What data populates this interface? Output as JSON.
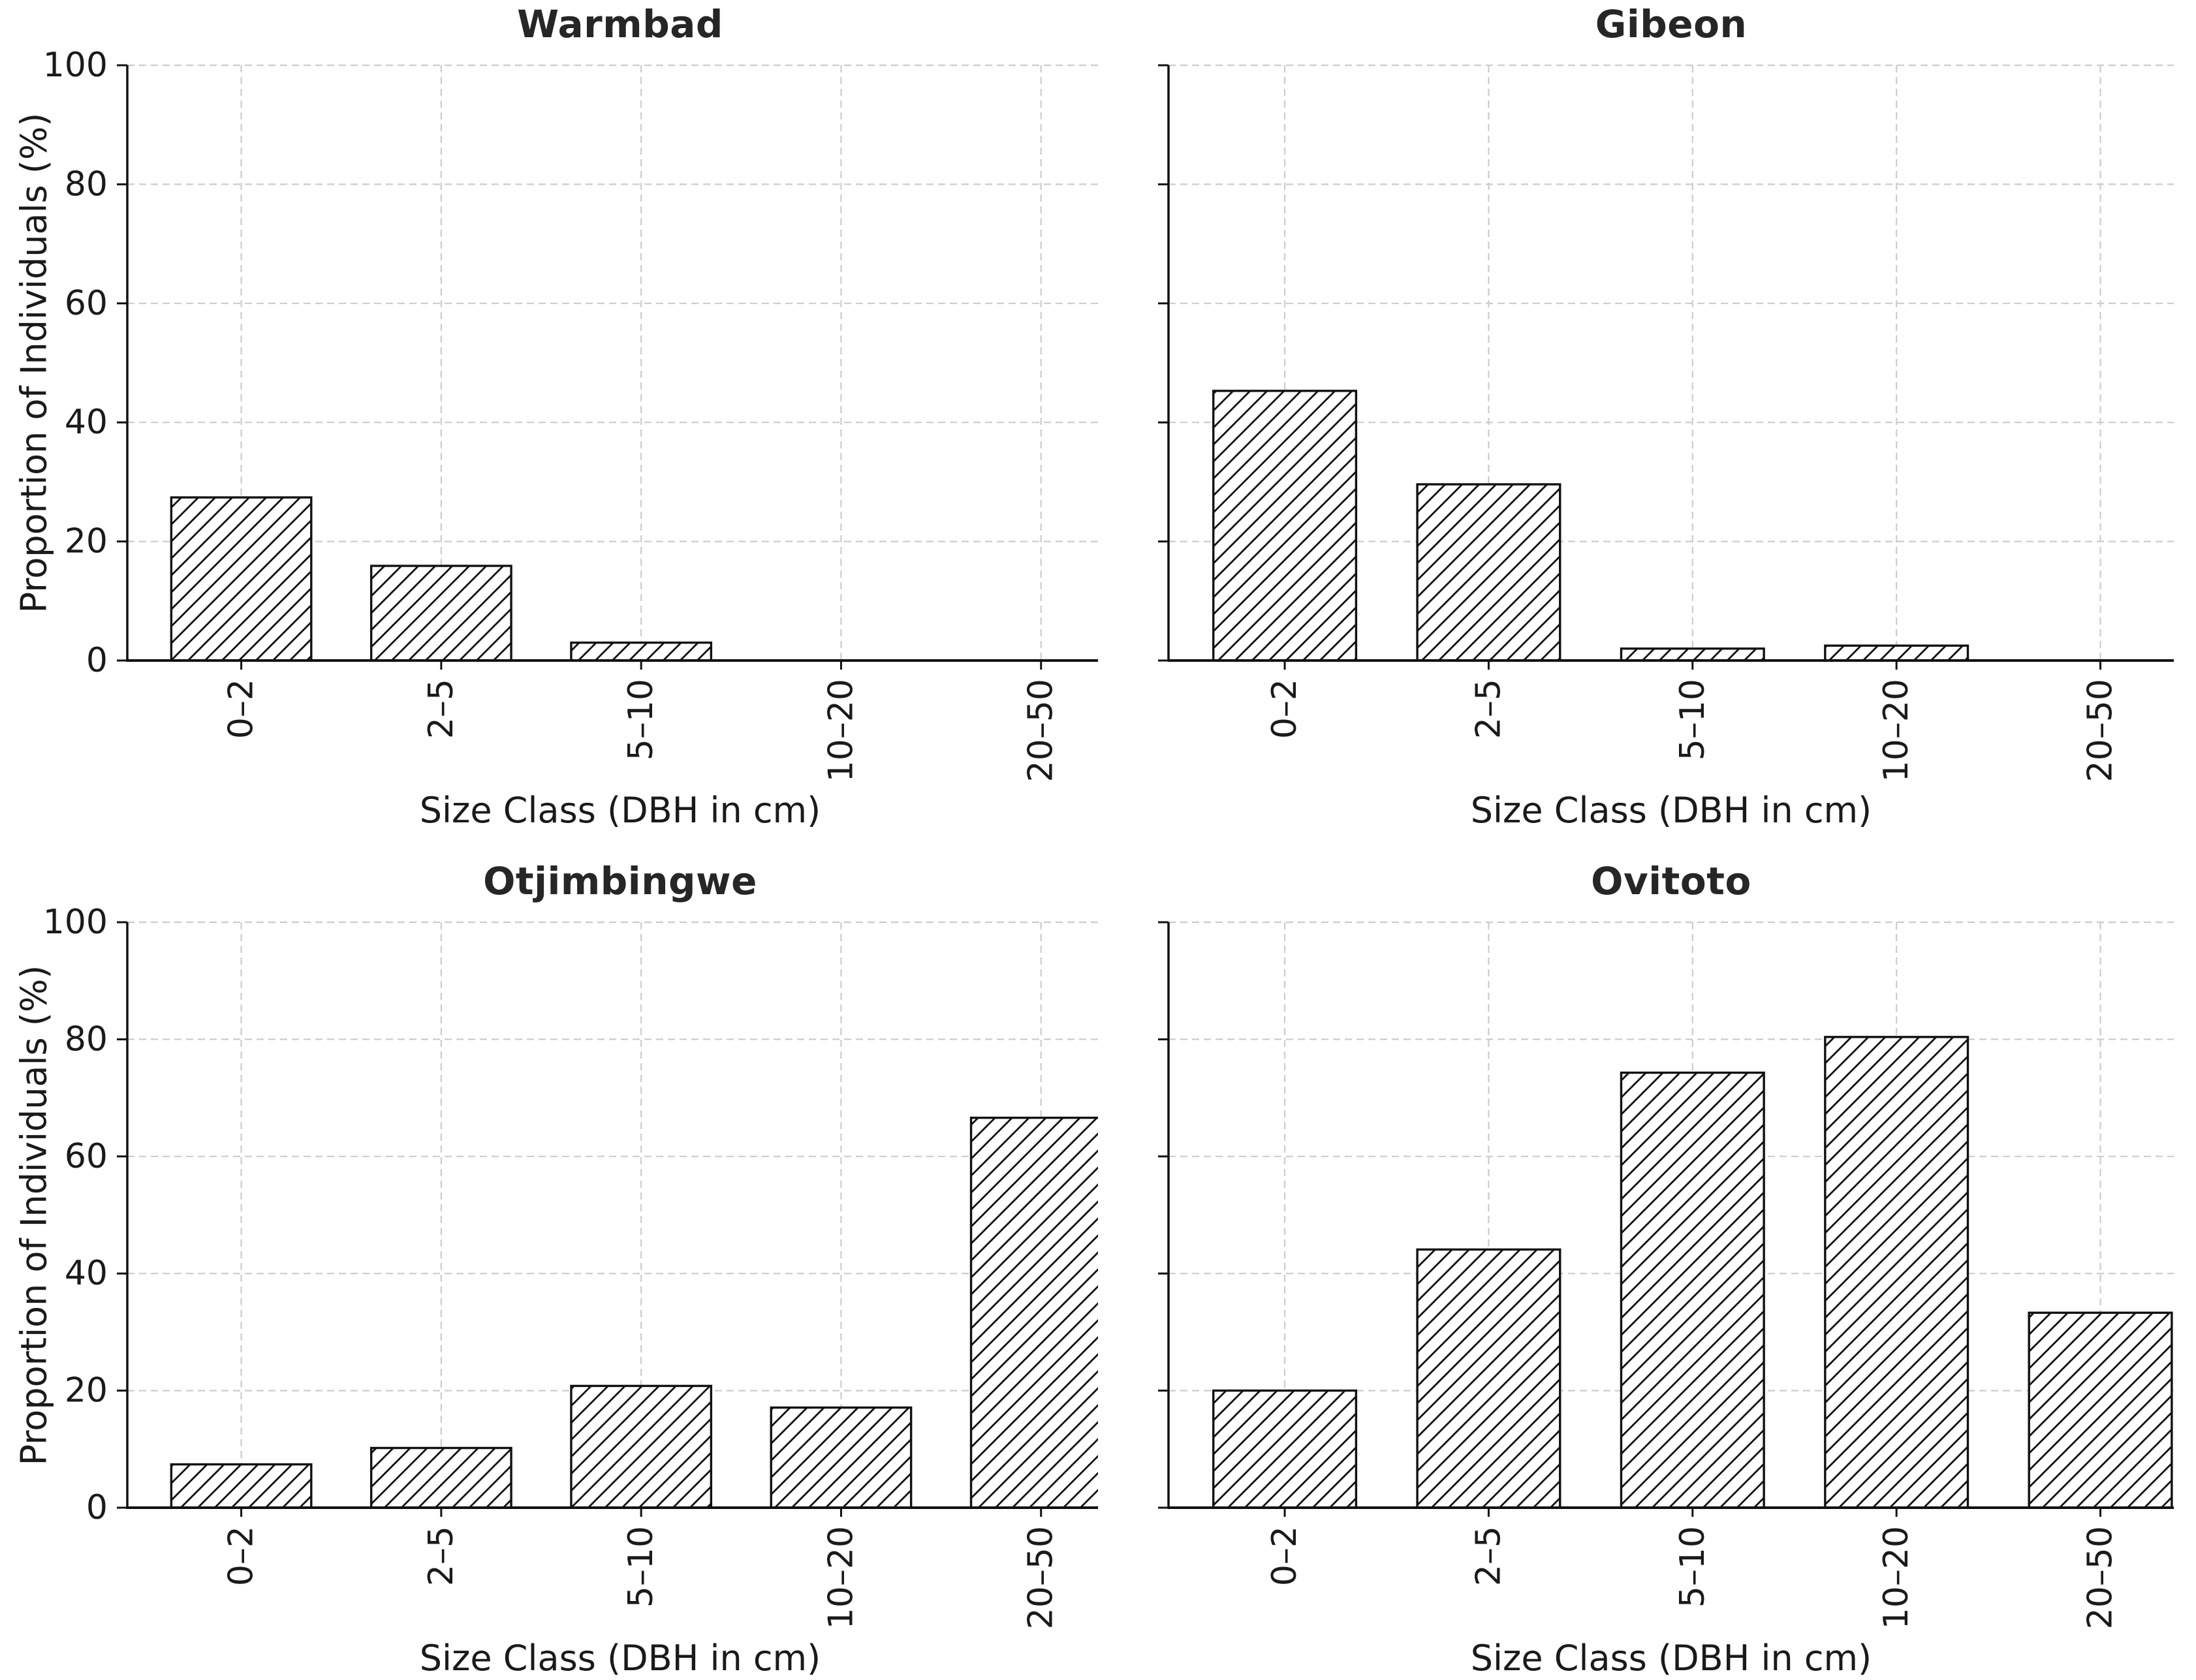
{
  "figure": {
    "background": "#ffffff",
    "text_color": "#1a1a1a",
    "grid_color": "#cccccc",
    "axis_color": "#111111",
    "bar_fill": "#ffffff",
    "bar_edge": "#111111",
    "hatch_style": "/"
  },
  "chart_data": [
    {
      "type": "bar",
      "title": "Warmbad",
      "categories": [
        "0–2",
        "2–5",
        "5–10",
        "10–20",
        "20–50"
      ],
      "values": [
        27.4,
        15.9,
        3.0,
        0,
        0
      ],
      "xlabel": "Size Class (DBH in cm)",
      "ylabel": "Proportion of Individuals (%)",
      "ylim": [
        0,
        100
      ],
      "yticks": [
        0,
        20,
        40,
        60,
        80,
        100
      ],
      "grid": "dashed",
      "legend": "none"
    },
    {
      "type": "bar",
      "title": "Gibeon",
      "categories": [
        "0–2",
        "2–5",
        "5–10",
        "10–20",
        "20–50"
      ],
      "values": [
        45.3,
        29.6,
        2.0,
        2.5,
        0
      ],
      "xlabel": "Size Class (DBH in cm)",
      "ylabel": "Proportion of Individuals (%)",
      "ylim": [
        0,
        100
      ],
      "yticks": [
        0,
        20,
        40,
        60,
        80,
        100
      ],
      "grid": "dashed",
      "legend": "none"
    },
    {
      "type": "bar",
      "title": "Otjimbingwe",
      "categories": [
        "0–2",
        "2–5",
        "5–10",
        "10–20",
        "20–50"
      ],
      "values": [
        7.4,
        10.2,
        20.8,
        17.1,
        66.6
      ],
      "xlabel": "Size Class (DBH in cm)",
      "ylabel": "Proportion of Individuals (%)",
      "ylim": [
        0,
        100
      ],
      "yticks": [
        0,
        20,
        40,
        60,
        80,
        100
      ],
      "grid": "dashed",
      "legend": "none"
    },
    {
      "type": "bar",
      "title": "Ovitoto",
      "categories": [
        "0–2",
        "2–5",
        "5–10",
        "10–20",
        "20–50"
      ],
      "values": [
        20.0,
        44.1,
        74.3,
        80.4,
        33.3
      ],
      "xlabel": "Size Class (DBH in cm)",
      "ylabel": "Proportion of Individuals (%)",
      "ylim": [
        0,
        100
      ],
      "yticks": [
        0,
        20,
        40,
        60,
        80,
        100
      ],
      "grid": "dashed",
      "legend": "none"
    }
  ]
}
